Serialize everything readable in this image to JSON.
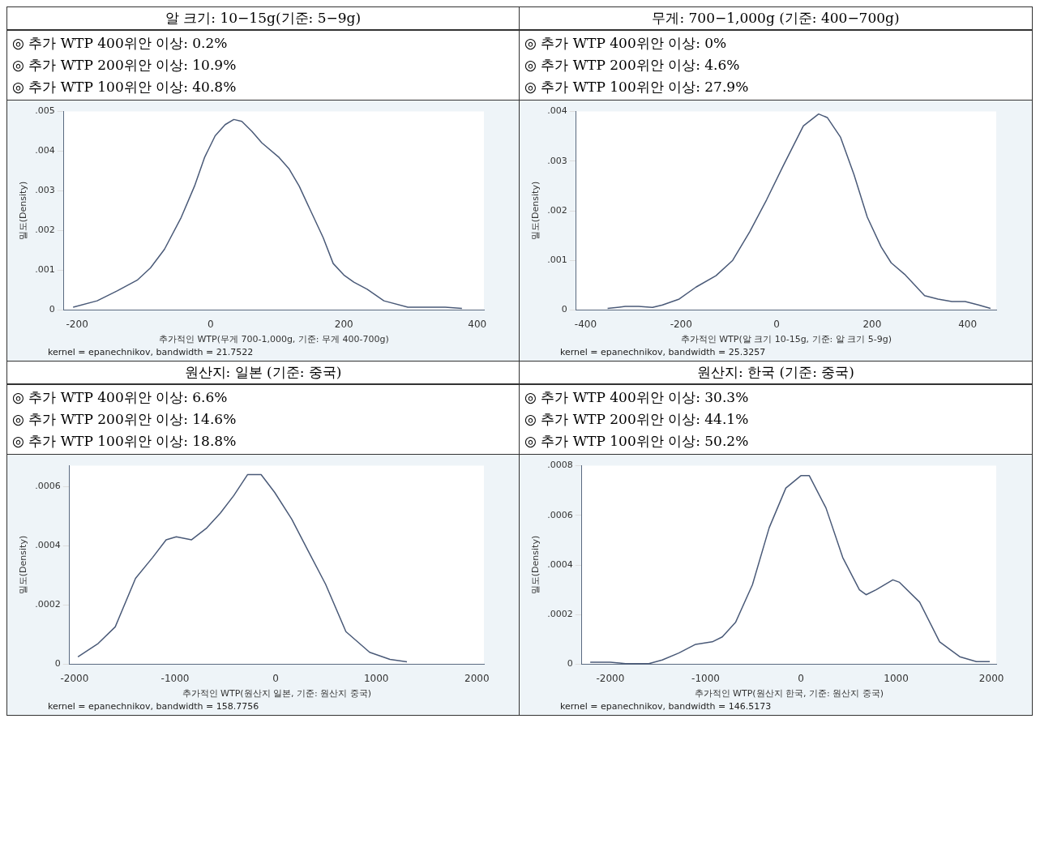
{
  "chart_data": [
    {
      "type": "line",
      "title": "알 크기: 10−15g(기준: 5−9g)",
      "annotations": [
        "◎ 추가 WTP 400위안 이상: 0.2%",
        "◎ 추가 WTP 200위안 이상: 10.9%",
        "◎ 추가 WTP 100위안 이상: 40.8%",
        "kernel = epanechnikov, bandwidth = 21.7522"
      ],
      "xlabel": "추가적인 WTP(무게 700-1,000g, 기준: 무게 400-700g)",
      "ylabel": "밀도(Density)",
      "x": [
        -206,
        -170,
        -140,
        -110,
        -90,
        -69,
        -44,
        -24,
        -9,
        7,
        22,
        35,
        47,
        62,
        77,
        103,
        118,
        133,
        149,
        169,
        184,
        200,
        215,
        235,
        260,
        296,
        326,
        352,
        377
      ],
      "series": [
        {
          "color": "#4a5a78",
          "values": [
            7e-05,
            0.00023,
            0.00048,
            0.00075,
            0.00106,
            0.00153,
            0.00233,
            0.00312,
            0.00384,
            0.00439,
            0.00467,
            0.0048,
            0.00475,
            0.0045,
            0.00421,
            0.00384,
            0.00355,
            0.00312,
            0.00254,
            0.00182,
            0.00117,
            0.00088,
            0.0007,
            0.00052,
            0.00023,
            7e-05,
            7e-05,
            7e-05,
            4e-05
          ]
        }
      ],
      "xlim": [
        -220,
        410
      ],
      "xticks": [
        -200,
        0,
        200,
        400
      ],
      "ylim": [
        0,
        0.005
      ],
      "yticks": [
        {
          "value": 0,
          "label": "0"
        },
        {
          "value": 0.001,
          "label": ".001"
        },
        {
          "value": 0.002,
          "label": ".002"
        },
        {
          "value": 0.003,
          "label": ".003"
        },
        {
          "value": 0.004,
          "label": ".004"
        },
        {
          "value": 0.005,
          "label": ".005"
        }
      ],
      "grid": false,
      "legend": false,
      "marker": "none",
      "line_style": "solid"
    },
    {
      "type": "line",
      "title": "무게: 700−1,000g (기준: 400−700g)",
      "annotations": [
        "◎ 추가 WTP 400위안 이상: 0%",
        "◎ 추가 WTP 200위안 이상: 4.6%",
        "◎ 추가 WTP 100위안 이상: 27.9%",
        "kernel = epanechnikov, bandwidth = 25.3257"
      ],
      "xlabel": "추가적인 WTP(알 크기 10-15g, 기준: 알 크기 5-9g)",
      "ylabel": "밀도(Density)",
      "x": [
        -354,
        -317,
        -289,
        -260,
        -239,
        -204,
        -169,
        -127,
        -92,
        -56,
        -21,
        14,
        56,
        88,
        106,
        134,
        162,
        190,
        219,
        240,
        268,
        310,
        338,
        367,
        395,
        423,
        448
      ],
      "series": [
        {
          "color": "#4a5a78",
          "values": [
            3e-05,
            7e-05,
            7e-05,
            5e-05,
            0.0001,
            0.00022,
            0.00046,
            0.00069,
            0.001,
            0.00158,
            0.00222,
            0.00291,
            0.00371,
            0.00395,
            0.00388,
            0.00348,
            0.00273,
            0.00187,
            0.00127,
            0.00095,
            0.00072,
            0.00029,
            0.00022,
            0.00017,
            0.00017,
            0.0001,
            3e-05
          ]
        }
      ],
      "xlim": [
        -420,
        460
      ],
      "xticks": [
        -400,
        -200,
        0,
        200,
        400
      ],
      "ylim": [
        0,
        0.004
      ],
      "yticks": [
        {
          "value": 0,
          "label": "0"
        },
        {
          "value": 0.001,
          "label": ".001"
        },
        {
          "value": 0.002,
          "label": ".002"
        },
        {
          "value": 0.003,
          "label": ".003"
        },
        {
          "value": 0.004,
          "label": ".004"
        }
      ],
      "grid": false,
      "legend": false,
      "marker": "none",
      "line_style": "solid"
    },
    {
      "type": "line",
      "title": "원산지: 일본 (기준: 중국)",
      "annotations": [
        "◎ 추가 WTP 400위안 이상: 6.6%",
        "◎ 추가 WTP 200위안 이상: 14.6%",
        "◎ 추가 WTP 100위안 이상: 18.8%",
        "kernel = epanechnikov, bandwidth = 158.7756"
      ],
      "xlabel": "추가적인 WTP(원산지 일본, 기준: 원산지 중국)",
      "ylabel": "밀도(Density)",
      "x": [
        -1966,
        -1764,
        -1595,
        -1393,
        -1224,
        -1089,
        -988,
        -836,
        -685,
        -550,
        -415,
        -280,
        -212,
        -145,
        -10,
        159,
        327,
        496,
        698,
        934,
        1136,
        1305
      ],
      "series": [
        {
          "color": "#4a5a78",
          "values": [
            2.5e-05,
            7e-05,
            0.000126,
            0.00029,
            0.00036,
            0.00042,
            0.00043,
            0.00042,
            0.00046,
            0.00051,
            0.00057,
            0.00064,
            0.00064,
            0.00064,
            0.00058,
            0.00049,
            0.00038,
            0.00027,
            0.00011,
            4e-05,
            1.6e-05,
            8e-06
          ]
        }
      ],
      "xlim": [
        -2050,
        2070
      ],
      "xticks": [
        -2000,
        -1000,
        0,
        1000,
        2000
      ],
      "ylim": [
        0,
        0.00067
      ],
      "yticks": [
        {
          "value": 0,
          "label": "0"
        },
        {
          "value": 0.0002,
          "label": ".0002"
        },
        {
          "value": 0.0004,
          "label": ".0004"
        },
        {
          "value": 0.0006,
          "label": ".0006"
        }
      ],
      "grid": false,
      "legend": false,
      "marker": "none",
      "line_style": "solid"
    },
    {
      "type": "line",
      "title": "원산지: 한국 (기준: 중국)",
      "annotations": [
        "◎ 추가 WTP 400위안 이상: 30.3%",
        "◎ 추가 WTP 200위안 이상: 44.1%",
        "◎ 추가 WTP 100위안 이상: 50.2%",
        "kernel = epanechnikov, bandwidth = 146.5173"
      ],
      "xlabel": "추가적인 WTP(원산지 한국, 기준: 원산지 중국)",
      "ylabel": "밀도(Density)",
      "x": [
        -2211,
        -2000,
        -1842,
        -1596,
        -1456,
        -1281,
        -1105,
        -930,
        -825,
        -684,
        -509,
        -333,
        -158,
        0,
        88,
        263,
        439,
        614,
        684,
        789,
        965,
        1035,
        1246,
        1456,
        1667,
        1842,
        1982
      ],
      "series": [
        {
          "color": "#4a5a78",
          "values": [
            8e-06,
            8e-06,
            2e-06,
            2e-06,
            1.7e-05,
            4.5e-05,
            8e-05,
            9e-05,
            0.00011,
            0.00017,
            0.00032,
            0.00055,
            0.00071,
            0.00076,
            0.00076,
            0.00063,
            0.00043,
            0.0003,
            0.00028,
            0.0003,
            0.00034,
            0.00033,
            0.00025,
            9e-05,
            3e-05,
            1e-05,
            1e-05
          ]
        }
      ],
      "xlim": [
        -2300,
        2050
      ],
      "xticks": [
        -2000,
        -1000,
        0,
        1000,
        2000
      ],
      "ylim": [
        0,
        0.0008
      ],
      "yticks": [
        {
          "value": 0,
          "label": "0"
        },
        {
          "value": 0.0002,
          "label": ".0002"
        },
        {
          "value": 0.0004,
          "label": ".0004"
        },
        {
          "value": 0.0006,
          "label": ".0006"
        },
        {
          "value": 0.0008,
          "label": ".0008"
        }
      ],
      "grid": false,
      "legend": false,
      "marker": "none",
      "line_style": "solid"
    }
  ]
}
